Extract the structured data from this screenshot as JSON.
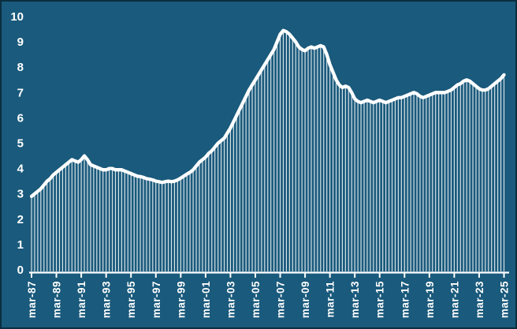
{
  "window": {
    "background_color": "#1a5a7c",
    "border_color": "#0b2e41",
    "accent_color": "#ffffff"
  },
  "chart_data": {
    "type": "line",
    "style": "white line with vertical drop lines from each data point to the baseline",
    "title": "",
    "xlabel": "",
    "ylabel": "",
    "legend": "none",
    "grid": "off",
    "frequency": "quarterly",
    "x_start_label": "mar-87",
    "x_end_label": "mar-25",
    "x_tick_labels": [
      "mar-87",
      "mar-89",
      "mar-91",
      "mar-93",
      "mar-95",
      "mar-97",
      "mar-99",
      "mar-01",
      "mar-03",
      "mar-05",
      "mar-07",
      "mar-09",
      "mar-11",
      "mar-13",
      "mar-15",
      "mar-17",
      "mar-19",
      "mar-21",
      "mar-23",
      "mar-25"
    ],
    "x_tick_label_rotation": -90,
    "x_label_every_n_points": 8,
    "y_ticks": [
      0,
      1,
      2,
      3,
      4,
      5,
      6,
      7,
      8,
      9,
      10
    ],
    "ylim": [
      0,
      10
    ],
    "line_color": "#ffffff",
    "drop_line_color": "rgba(255,255,255,0.85)",
    "series": [
      {
        "name": "value",
        "points": 153,
        "values": [
          2.9,
          3.0,
          3.1,
          3.2,
          3.35,
          3.5,
          3.6,
          3.75,
          3.85,
          3.95,
          4.05,
          4.15,
          4.25,
          4.35,
          4.3,
          4.25,
          4.35,
          4.5,
          4.35,
          4.15,
          4.1,
          4.05,
          4.0,
          3.95,
          3.95,
          4.0,
          4.0,
          3.95,
          3.95,
          3.95,
          3.9,
          3.85,
          3.8,
          3.75,
          3.7,
          3.68,
          3.65,
          3.6,
          3.58,
          3.55,
          3.5,
          3.48,
          3.45,
          3.48,
          3.5,
          3.48,
          3.5,
          3.55,
          3.62,
          3.7,
          3.78,
          3.85,
          3.95,
          4.1,
          4.25,
          4.35,
          4.45,
          4.6,
          4.7,
          4.85,
          5.0,
          5.1,
          5.2,
          5.4,
          5.6,
          5.85,
          6.1,
          6.35,
          6.6,
          6.85,
          7.1,
          7.3,
          7.5,
          7.7,
          7.9,
          8.1,
          8.3,
          8.5,
          8.7,
          9.0,
          9.3,
          9.45,
          9.4,
          9.3,
          9.15,
          9.0,
          8.8,
          8.7,
          8.65,
          8.75,
          8.8,
          8.75,
          8.8,
          8.85,
          8.8,
          8.5,
          8.1,
          7.8,
          7.5,
          7.3,
          7.2,
          7.25,
          7.2,
          7.0,
          6.75,
          6.65,
          6.6,
          6.65,
          6.7,
          6.65,
          6.6,
          6.65,
          6.7,
          6.65,
          6.6,
          6.65,
          6.7,
          6.75,
          6.8,
          6.8,
          6.85,
          6.9,
          6.95,
          7.0,
          6.95,
          6.85,
          6.8,
          6.85,
          6.9,
          6.95,
          7.0,
          7.0,
          7.0,
          7.0,
          7.05,
          7.1,
          7.2,
          7.3,
          7.35,
          7.45,
          7.5,
          7.45,
          7.35,
          7.25,
          7.15,
          7.1,
          7.1,
          7.15,
          7.25,
          7.35,
          7.45,
          7.55,
          7.7
        ]
      }
    ]
  }
}
